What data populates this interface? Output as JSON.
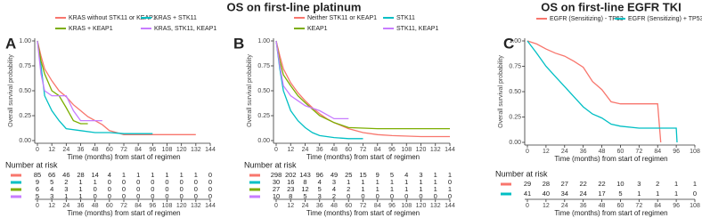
{
  "chart_data": [
    {
      "type": "line",
      "title": "OS on first-line platinum",
      "panel_label": "A",
      "xlabel": "Time (months) from start of regimen",
      "ylabel": "Overall survival probability",
      "xlim": [
        0,
        144
      ],
      "xticks": [
        0,
        12,
        24,
        36,
        48,
        60,
        72,
        84,
        96,
        108,
        120,
        132,
        144
      ],
      "ylim": [
        0,
        1
      ],
      "yticks": [
        {
          "value": 0,
          "label": "0.00"
        },
        {
          "value": 0.25,
          "label": "0.25"
        },
        {
          "value": 0.5,
          "label": "0.50"
        },
        {
          "value": 0.75,
          "label": "0.75"
        },
        {
          "value": 1,
          "label": "1.00"
        }
      ],
      "series": [
        {
          "name": "KRAS without STK11 or KEAP1",
          "color": "#f8766d",
          "x": [
            0,
            3,
            6,
            12,
            18,
            24,
            30,
            36,
            42,
            48,
            54,
            60,
            66,
            72,
            132
          ],
          "values": [
            1,
            0.85,
            0.72,
            0.6,
            0.5,
            0.44,
            0.36,
            0.3,
            0.24,
            0.2,
            0.16,
            0.1,
            0.08,
            0.06,
            0.06
          ]
        },
        {
          "name": "KRAS + STK11",
          "color": "#00bfc4",
          "x": [
            0,
            3,
            6,
            12,
            18,
            24,
            36,
            48,
            60,
            72,
            96
          ],
          "values": [
            1,
            0.75,
            0.45,
            0.3,
            0.2,
            0.12,
            0.1,
            0.08,
            0.08,
            0.07,
            0.07
          ]
        },
        {
          "name": "KRAS + KEAP1",
          "color": "#7cae00",
          "x": [
            0,
            3,
            6,
            12,
            18,
            24,
            30,
            36,
            42
          ],
          "values": [
            1,
            0.8,
            0.67,
            0.5,
            0.45,
            0.33,
            0.2,
            0.17,
            0.17
          ]
        },
        {
          "name": "KRAS, STK11, KEAP1",
          "color": "#c77cff",
          "x": [
            0,
            3,
            6,
            12,
            24,
            30,
            36,
            48,
            54
          ],
          "values": [
            1,
            0.67,
            0.5,
            0.45,
            0.45,
            0.3,
            0.2,
            0.2,
            0.2
          ]
        }
      ],
      "risk_table": {
        "title": "Number at risk",
        "rows": [
          [
            85,
            66,
            46,
            28,
            14,
            4,
            1,
            1,
            1,
            1,
            1,
            1,
            0
          ],
          [
            9,
            5,
            2,
            1,
            1,
            0,
            0,
            0,
            0,
            0,
            0,
            0,
            0
          ],
          [
            6,
            4,
            3,
            1,
            0,
            0,
            0,
            0,
            0,
            0,
            0,
            0,
            0
          ],
          [
            5,
            3,
            1,
            1,
            0,
            0,
            0,
            0,
            0,
            0,
            0,
            0,
            0
          ]
        ]
      }
    },
    {
      "type": "line",
      "panel_label": "B",
      "xlabel": "Time (months) from start of regimen",
      "ylabel": "Overall survival probability",
      "xlim": [
        0,
        144
      ],
      "xticks": [
        0,
        12,
        24,
        36,
        48,
        60,
        72,
        84,
        96,
        108,
        120,
        132,
        144
      ],
      "ylim": [
        0,
        1
      ],
      "yticks": [
        {
          "value": 0,
          "label": "0.00"
        },
        {
          "value": 0.25,
          "label": "0.25"
        },
        {
          "value": 0.5,
          "label": "0.50"
        },
        {
          "value": 0.75,
          "label": "0.75"
        },
        {
          "value": 1,
          "label": "1.00"
        }
      ],
      "series": [
        {
          "name": "Neither STK11 or KEAP1",
          "color": "#f8766d",
          "x": [
            0,
            3,
            6,
            12,
            18,
            24,
            30,
            36,
            42,
            48,
            60,
            72,
            84,
            96,
            120,
            144
          ],
          "values": [
            1,
            0.85,
            0.72,
            0.58,
            0.48,
            0.4,
            0.33,
            0.27,
            0.22,
            0.18,
            0.12,
            0.08,
            0.06,
            0.05,
            0.04,
            0.04
          ]
        },
        {
          "name": "STK11",
          "color": "#00bfc4",
          "x": [
            0,
            3,
            6,
            12,
            18,
            24,
            30,
            36,
            48,
            60,
            72
          ],
          "values": [
            1,
            0.72,
            0.5,
            0.3,
            0.2,
            0.13,
            0.08,
            0.05,
            0.03,
            0.02,
            0.02
          ]
        },
        {
          "name": "KEAP1",
          "color": "#7cae00",
          "x": [
            0,
            3,
            6,
            12,
            18,
            24,
            36,
            48,
            60,
            84,
            144
          ],
          "values": [
            1,
            0.8,
            0.66,
            0.55,
            0.45,
            0.38,
            0.25,
            0.18,
            0.13,
            0.12,
            0.12
          ]
        },
        {
          "name": "STK11, KEAP1",
          "color": "#c77cff",
          "x": [
            0,
            3,
            6,
            12,
            18,
            24,
            36,
            48,
            60
          ],
          "values": [
            1,
            0.75,
            0.55,
            0.45,
            0.4,
            0.35,
            0.3,
            0.22,
            0.22
          ]
        }
      ],
      "risk_table": {
        "title": "Number at risk",
        "rows": [
          [
            298,
            202,
            143,
            96,
            49,
            25,
            15,
            9,
            5,
            4,
            3,
            1,
            1
          ],
          [
            30,
            16,
            8,
            4,
            3,
            1,
            1,
            1,
            1,
            1,
            1,
            1,
            0
          ],
          [
            27,
            23,
            12,
            5,
            4,
            2,
            1,
            1,
            1,
            1,
            1,
            1,
            1
          ],
          [
            10,
            8,
            5,
            3,
            2,
            0,
            0,
            0,
            0,
            0,
            0,
            0,
            0
          ]
        ]
      }
    },
    {
      "type": "line",
      "title": "OS on first-line EGFR TKI",
      "panel_label": "C",
      "xlabel": "Time (months) from start of regimen",
      "ylabel": "Overall survival probability",
      "xlim": [
        0,
        108
      ],
      "xticks": [
        0,
        12,
        24,
        36,
        48,
        60,
        72,
        84,
        96,
        108
      ],
      "ylim": [
        0,
        1
      ],
      "yticks": [
        {
          "value": 0,
          "label": "0.00"
        },
        {
          "value": 0.25,
          "label": "0.25"
        },
        {
          "value": 0.5,
          "label": "0.50"
        },
        {
          "value": 0.75,
          "label": "0.75"
        },
        {
          "value": 1,
          "label": "1.00"
        }
      ],
      "series": [
        {
          "name": "EGFR (Sensitizing) - TP53",
          "color": "#f8766d",
          "x": [
            0,
            6,
            12,
            18,
            24,
            30,
            36,
            42,
            48,
            54,
            60,
            72,
            84,
            86
          ],
          "values": [
            1,
            0.97,
            0.92,
            0.88,
            0.85,
            0.8,
            0.74,
            0.6,
            0.52,
            0.4,
            0.38,
            0.38,
            0.38,
            0
          ]
        },
        {
          "name": "EGFR (Sensitizing) + TP53",
          "color": "#00bfc4",
          "x": [
            0,
            6,
            12,
            18,
            24,
            30,
            36,
            42,
            48,
            54,
            60,
            72,
            84,
            96,
            96.5
          ],
          "values": [
            1,
            0.88,
            0.75,
            0.65,
            0.55,
            0.45,
            0.35,
            0.28,
            0.24,
            0.18,
            0.16,
            0.14,
            0.14,
            0.14,
            0
          ]
        }
      ],
      "risk_table": {
        "title": "Number at risk",
        "rows": [
          [
            29,
            28,
            27,
            22,
            22,
            10,
            3,
            2,
            1,
            1
          ],
          [
            41,
            40,
            34,
            24,
            17,
            5,
            1,
            1,
            1,
            0
          ]
        ]
      }
    }
  ]
}
